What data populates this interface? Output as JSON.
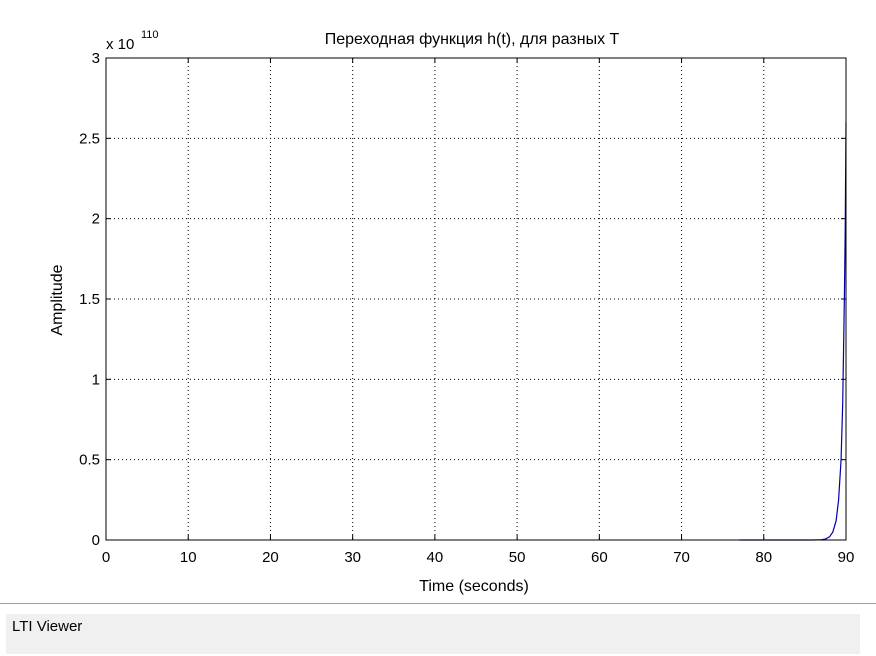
{
  "window": {
    "status_text": "LTI Viewer"
  },
  "chart_data": {
    "type": "line",
    "title": "Переходная функция h(t), для разных T",
    "xlabel": "Time (seconds)",
    "ylabel": "Amplitude",
    "y_multiplier": {
      "base": "x 10",
      "exponent": "110"
    },
    "xlim": [
      0,
      90
    ],
    "ylim": [
      0,
      3
    ],
    "x_ticks": [
      0,
      10,
      20,
      30,
      40,
      50,
      60,
      70,
      80,
      90
    ],
    "x_tick_labels": [
      "0",
      "10",
      "20",
      "30",
      "40",
      "50",
      "60",
      "70",
      "80",
      "90"
    ],
    "y_ticks": [
      0,
      0.5,
      1,
      1.5,
      2,
      2.5,
      3
    ],
    "y_tick_labels": [
      "0",
      "0.5",
      "1",
      "1.5",
      "2",
      "2.5",
      "3"
    ],
    "grid": true,
    "series": [
      {
        "color": "#0000aa",
        "x": [
          77,
          80,
          83,
          85,
          86,
          87,
          87.5,
          88,
          88.4,
          88.8,
          89.1,
          89.4,
          89.6,
          89.8,
          89.9,
          90
        ],
        "y": [
          0,
          0,
          0,
          0,
          0,
          0.002,
          0.006,
          0.02,
          0.05,
          0.12,
          0.25,
          0.5,
          0.85,
          1.5,
          1.9,
          2.6
        ]
      }
    ]
  }
}
